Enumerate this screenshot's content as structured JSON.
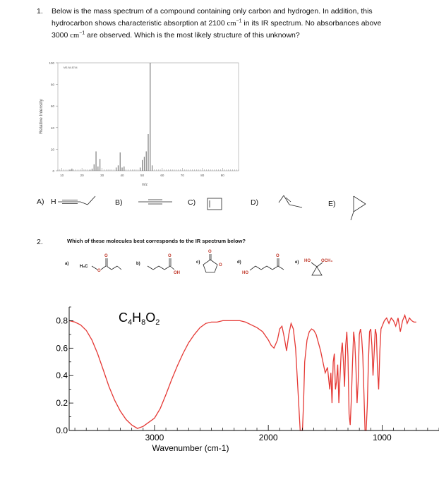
{
  "q1": {
    "number": "1.",
    "line1": "Below is the mass spectrum of a compound containing only carbon and hydrogen.  In addition, this",
    "line2a": "hydrocarbon shows characteristic absorption at 2100",
    "line2b": "in its IR spectrum.  No absorbances above",
    "line3a": "3000",
    "line3b": "are observed.   Which is the most likely structure of this unknown?",
    "unit": "cm",
    "unit_exp": "−1",
    "answers": {
      "a": "A)",
      "a_h": "H",
      "b": "B)",
      "c": "C)",
      "d": "D)",
      "e": "E)"
    }
  },
  "ms_chart": {
    "chart_data": {
      "type": "bar",
      "title": "",
      "code": "MS-IW-8744",
      "xlabel": "m/z",
      "ylabel": "Relative Intensity",
      "xlim": [
        8,
        98
      ],
      "ylim": [
        0,
        100
      ],
      "xticks": [
        10,
        20,
        30,
        40,
        50,
        60,
        70,
        80,
        90
      ],
      "yticks": [
        0,
        20,
        40,
        60,
        80,
        100
      ],
      "peaks": [
        {
          "x": 14,
          "y": 1
        },
        {
          "x": 15,
          "y": 2
        },
        {
          "x": 24,
          "y": 1
        },
        {
          "x": 25,
          "y": 2
        },
        {
          "x": 26,
          "y": 6
        },
        {
          "x": 27,
          "y": 18
        },
        {
          "x": 28,
          "y": 4
        },
        {
          "x": 29,
          "y": 11
        },
        {
          "x": 37,
          "y": 3
        },
        {
          "x": 38,
          "y": 5
        },
        {
          "x": 39,
          "y": 17
        },
        {
          "x": 40,
          "y": 3
        },
        {
          "x": 41,
          "y": 4
        },
        {
          "x": 49,
          "y": 3
        },
        {
          "x": 50,
          "y": 10
        },
        {
          "x": 51,
          "y": 13
        },
        {
          "x": 52,
          "y": 18
        },
        {
          "x": 53,
          "y": 34
        },
        {
          "x": 54,
          "y": 100
        },
        {
          "x": 55,
          "y": 5
        }
      ]
    }
  },
  "q2": {
    "number": "2.",
    "question": "Which of these molecules best corresponds to the IR spectrum below?",
    "options": {
      "a": "a)",
      "a_group": "H₃C",
      "b": "b)",
      "b_group": "OH",
      "c": "c)",
      "d": "d)",
      "d_group": "HO",
      "e": "e)",
      "e_group1": "HO",
      "e_group2": "OCH₃",
      "oxygen": "O"
    }
  },
  "ir_chart": {
    "chart_data": {
      "type": "line",
      "title": "",
      "formula": {
        "c": "C",
        "c_sub": "4",
        "h": "H",
        "h_sub": "8",
        "o": "O",
        "o_sub": "2"
      },
      "xlabel": "Wavenumber (cm-1)",
      "ylabel": "",
      "xlim": [
        3750,
        500
      ],
      "ylim": [
        0,
        0.9
      ],
      "xticks": [
        3000,
        2000,
        1000
      ],
      "yticks": [
        0.0,
        0.2,
        0.4,
        0.6,
        0.8
      ],
      "ytick_labels": [
        "0.0",
        "0.2",
        "0.4",
        "0.6",
        "0.8"
      ],
      "x": [
        3750,
        3700,
        3650,
        3600,
        3550,
        3500,
        3450,
        3400,
        3350,
        3300,
        3250,
        3200,
        3150,
        3100,
        3050,
        3000,
        2950,
        2900,
        2850,
        2800,
        2750,
        2700,
        2650,
        2600,
        2550,
        2500,
        2450,
        2400,
        2350,
        2300,
        2250,
        2200,
        2150,
        2100,
        2050,
        2000,
        1975,
        1950,
        1920,
        1900,
        1880,
        1860,
        1840,
        1820,
        1800,
        1780,
        1760,
        1740,
        1720,
        1700,
        1690,
        1680,
        1660,
        1640,
        1620,
        1600,
        1580,
        1560,
        1540,
        1520,
        1500,
        1480,
        1460,
        1450,
        1440,
        1430,
        1420,
        1410,
        1400,
        1390,
        1380,
        1370,
        1360,
        1350,
        1340,
        1330,
        1320,
        1310,
        1300,
        1290,
        1280,
        1270,
        1260,
        1250,
        1240,
        1230,
        1220,
        1210,
        1200,
        1190,
        1180,
        1170,
        1160,
        1150,
        1140,
        1130,
        1120,
        1110,
        1100,
        1090,
        1080,
        1070,
        1060,
        1050,
        1040,
        1030,
        1020,
        1010,
        1000,
        980,
        960,
        940,
        920,
        900,
        880,
        860,
        840,
        820,
        800,
        780,
        760,
        740,
        720,
        700
      ],
      "y": [
        0.8,
        0.79,
        0.77,
        0.73,
        0.66,
        0.56,
        0.44,
        0.32,
        0.22,
        0.14,
        0.08,
        0.04,
        0.015,
        0.03,
        0.06,
        0.09,
        0.16,
        0.26,
        0.37,
        0.47,
        0.56,
        0.64,
        0.7,
        0.75,
        0.78,
        0.79,
        0.79,
        0.8,
        0.8,
        0.8,
        0.8,
        0.79,
        0.77,
        0.75,
        0.72,
        0.66,
        0.62,
        0.6,
        0.66,
        0.74,
        0.76,
        0.68,
        0.58,
        0.7,
        0.78,
        0.74,
        0.6,
        0.3,
        0.0,
        0.0,
        0.2,
        0.5,
        0.66,
        0.72,
        0.74,
        0.73,
        0.7,
        0.64,
        0.58,
        0.5,
        0.42,
        0.46,
        0.3,
        0.42,
        0.2,
        0.5,
        0.56,
        0.3,
        0.36,
        0.48,
        0.2,
        0.38,
        0.56,
        0.64,
        0.5,
        0.32,
        0.62,
        0.72,
        0.54,
        0.12,
        0.04,
        0.24,
        0.5,
        0.72,
        0.64,
        0.46,
        0.2,
        0.36,
        0.7,
        0.74,
        0.68,
        0.55,
        0.28,
        0.0,
        0.0,
        0.18,
        0.5,
        0.72,
        0.74,
        0.62,
        0.4,
        0.56,
        0.74,
        0.7,
        0.44,
        0.3,
        0.58,
        0.74,
        0.76,
        0.8,
        0.82,
        0.78,
        0.82,
        0.8,
        0.76,
        0.82,
        0.72,
        0.8,
        0.84,
        0.78,
        0.82,
        0.8,
        0.79,
        0.79
      ]
    }
  }
}
